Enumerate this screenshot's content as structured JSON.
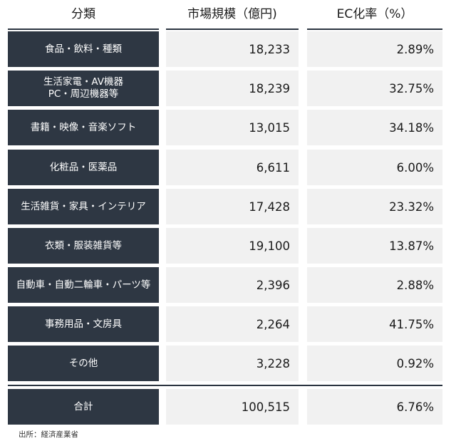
{
  "header": {
    "col_category": "分類",
    "col_market": "市場規模（億円)",
    "col_ec": "EC化率（%）"
  },
  "rows": [
    {
      "category": "食品・飲料・種類",
      "market": "18,233",
      "ec": "2.89%"
    },
    {
      "category": "生活家電・AV機器\nPC・周辺機器等",
      "market": "18,239",
      "ec": "32.75%"
    },
    {
      "category": "書籍・映像・音楽ソフト",
      "market": "13,015",
      "ec": "34.18%"
    },
    {
      "category": "化粧品・医薬品",
      "market": "6,611",
      "ec": "6.00%"
    },
    {
      "category": "生活雑貨・家具・インテリア",
      "market": "17,428",
      "ec": "23.32%"
    },
    {
      "category": "衣類・服装雑貨等",
      "market": "19,100",
      "ec": "13.87%"
    },
    {
      "category": "自動車・自動二輪車・パーツ等",
      "market": "2,396",
      "ec": "2.88%"
    },
    {
      "category": "事務用品・文房具",
      "market": "2,264",
      "ec": "41.75%"
    },
    {
      "category": "その他",
      "market": "3,228",
      "ec": "0.92%"
    }
  ],
  "total": {
    "category": "合計",
    "market": "100,515",
    "ec": "6.76%"
  },
  "source": "出所：経済産業省"
}
